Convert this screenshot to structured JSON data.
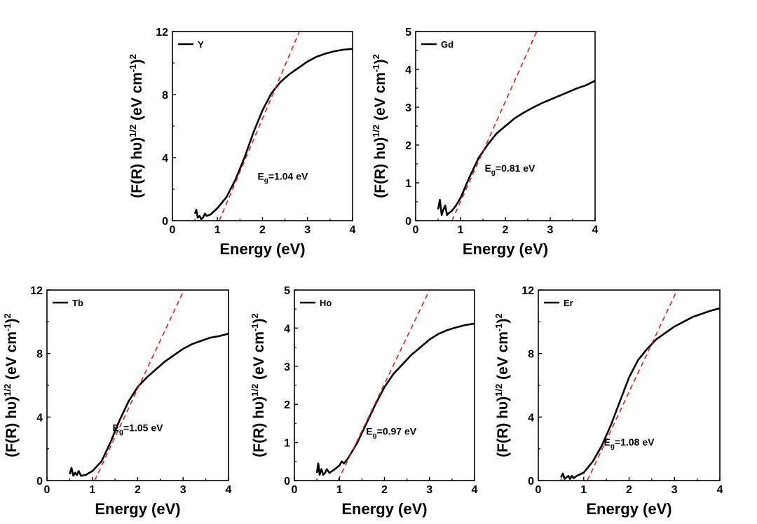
{
  "colors": {
    "data_line": "#000000",
    "fit_line": "#e41a1c",
    "axis": "#000000",
    "background": "#ffffff"
  },
  "chart_data": [
    {
      "type": "line",
      "xlabel": "Energy (eV)",
      "ylabel": "(F(R) hυ)1/2 (eV cm-1)2",
      "ylabel_parts": {
        "pre": "(F(R) hυ)",
        "sup1": "1/2",
        "mid": " (eV cm",
        "sup2": "-1",
        "post": ")",
        "sup3": "2"
      },
      "xlim": [
        0,
        4
      ],
      "ylim": [
        0,
        12
      ],
      "xticks": [
        0,
        1,
        2,
        3,
        4
      ],
      "yticks": [
        0,
        4,
        8,
        12
      ],
      "legend": "Y",
      "legend_position": "top-left",
      "annotation": {
        "main": "E",
        "sub": "g",
        "rest": "=1.04 eV"
      },
      "annotation_at": [
        2.45,
        2.6
      ],
      "series": [
        {
          "name": "Y",
          "style": "solid",
          "x": [
            0.5,
            0.53,
            0.56,
            0.6,
            0.64,
            0.68,
            0.72,
            0.76,
            0.85,
            1.0,
            1.2,
            1.4,
            1.6,
            1.8,
            2.0,
            2.2,
            2.4,
            2.6,
            2.8,
            3.0,
            3.2,
            3.4,
            3.6,
            3.8,
            4.0
          ],
          "y": [
            0.45,
            0.7,
            0.2,
            0.3,
            0.1,
            0.2,
            0.45,
            0.3,
            0.4,
            0.8,
            1.5,
            2.6,
            4.0,
            5.6,
            7.0,
            8.1,
            8.8,
            9.3,
            9.7,
            10.1,
            10.4,
            10.6,
            10.75,
            10.85,
            10.9
          ]
        },
        {
          "name": "fit",
          "style": "dashed",
          "x": [
            1.04,
            2.82
          ],
          "y": [
            0,
            12
          ]
        }
      ]
    },
    {
      "type": "line",
      "xlabel": "Energy (eV)",
      "ylabel": "(F(R) hυ)1/2 (eV cm-1)2",
      "ylabel_parts": {
        "pre": "(F(R) hυ)",
        "sup1": "1/2",
        "mid": " (eV cm",
        "sup2": "-1",
        "post": ")",
        "sup3": "2"
      },
      "xlim": [
        0,
        4
      ],
      "ylim": [
        0,
        5
      ],
      "xticks": [
        0,
        1,
        2,
        3,
        4
      ],
      "yticks": [
        0,
        1,
        2,
        3,
        4,
        5
      ],
      "legend": "Gd",
      "legend_position": "top-left",
      "annotation": {
        "main": "E",
        "sub": "g",
        "rest": "=0.81 eV"
      },
      "annotation_at": [
        2.1,
        1.3
      ],
      "series": [
        {
          "name": "Gd",
          "style": "solid",
          "x": [
            0.5,
            0.54,
            0.58,
            0.62,
            0.66,
            0.7,
            0.74,
            0.8,
            0.9,
            1.0,
            1.2,
            1.4,
            1.6,
            1.8,
            2.0,
            2.2,
            2.4,
            2.6,
            2.8,
            3.0,
            3.2,
            3.4,
            3.6,
            3.8,
            4.0
          ],
          "y": [
            0.3,
            0.55,
            0.15,
            0.3,
            0.4,
            0.15,
            0.2,
            0.25,
            0.4,
            0.6,
            1.15,
            1.65,
            2.0,
            2.3,
            2.5,
            2.7,
            2.85,
            2.98,
            3.1,
            3.2,
            3.3,
            3.4,
            3.5,
            3.58,
            3.7
          ]
        },
        {
          "name": "fit",
          "style": "dashed",
          "x": [
            0.81,
            2.7
          ],
          "y": [
            0,
            5
          ]
        }
      ]
    },
    {
      "type": "line",
      "xlabel": "Energy (eV)",
      "ylabel": "(F(R) hυ)1/2 (eV cm-1)2",
      "ylabel_parts": {
        "pre": "(F(R) hυ)",
        "sup1": "1/2",
        "mid": " (eV cm",
        "sup2": "-1",
        "post": ")",
        "sup3": "2"
      },
      "xlim": [
        0,
        4
      ],
      "ylim": [
        0,
        12
      ],
      "xticks": [
        0,
        1,
        2,
        3,
        4
      ],
      "yticks": [
        0,
        4,
        8,
        12
      ],
      "legend": "Tb",
      "legend_position": "top-left",
      "annotation": {
        "main": "E",
        "sub": "g",
        "rest": "=1.05 eV"
      },
      "annotation_at": [
        2.0,
        3.1
      ],
      "series": [
        {
          "name": "Tb",
          "style": "solid",
          "x": [
            0.5,
            0.54,
            0.58,
            0.62,
            0.66,
            0.7,
            0.75,
            0.85,
            1.0,
            1.2,
            1.4,
            1.6,
            1.8,
            2.0,
            2.2,
            2.4,
            2.6,
            2.8,
            3.0,
            3.2,
            3.4,
            3.6,
            3.8,
            4.0
          ],
          "y": [
            0.4,
            0.8,
            0.3,
            0.5,
            0.35,
            0.6,
            0.3,
            0.35,
            0.6,
            1.2,
            2.4,
            3.8,
            5.0,
            5.9,
            6.5,
            7.0,
            7.5,
            7.9,
            8.3,
            8.6,
            8.8,
            9.0,
            9.1,
            9.25
          ]
        },
        {
          "name": "fit",
          "style": "dashed",
          "x": [
            1.05,
            3.02
          ],
          "y": [
            0,
            12
          ]
        }
      ]
    },
    {
      "type": "line",
      "xlabel": "Energy (eV)",
      "ylabel": "(F(R) hυ)1/2 (eV cm-1)2",
      "ylabel_parts": {
        "pre": "(F(R) hυ)",
        "sup1": "1/2",
        "mid": " (eV cm",
        "sup2": "-1",
        "post": ")",
        "sup3": "2"
      },
      "xlim": [
        0,
        4
      ],
      "ylim": [
        0,
        5
      ],
      "xticks": [
        0,
        1,
        2,
        3,
        4
      ],
      "yticks": [
        0,
        1,
        2,
        3,
        4,
        5
      ],
      "legend": "Ho",
      "legend_position": "top-left",
      "annotation": {
        "main": "E",
        "sub": "g",
        "rest": "=0.97 eV"
      },
      "annotation_at": [
        2.15,
        1.2
      ],
      "series": [
        {
          "name": "Ho",
          "style": "solid",
          "x": [
            0.5,
            0.53,
            0.56,
            0.6,
            0.64,
            0.68,
            0.72,
            0.78,
            0.9,
            1.0,
            1.05,
            1.1,
            1.2,
            1.4,
            1.6,
            1.8,
            2.0,
            2.2,
            2.4,
            2.6,
            2.8,
            3.0,
            3.2,
            3.4,
            3.6,
            3.8,
            4.0
          ],
          "y": [
            0.2,
            0.45,
            0.15,
            0.3,
            0.15,
            0.2,
            0.3,
            0.2,
            0.3,
            0.4,
            0.5,
            0.45,
            0.6,
            1.0,
            1.5,
            2.0,
            2.45,
            2.8,
            3.05,
            3.3,
            3.5,
            3.7,
            3.85,
            3.95,
            4.02,
            4.08,
            4.12
          ]
        },
        {
          "name": "fit",
          "style": "dashed",
          "x": [
            0.97,
            3.0
          ],
          "y": [
            0,
            5
          ]
        }
      ]
    },
    {
      "type": "line",
      "xlabel": "Energy (eV)",
      "ylabel": "(F(R) hυ)1/2 (eV cm-1)2",
      "ylabel_parts": {
        "pre": "(F(R) hυ)",
        "sup1": "1/2",
        "mid": " (eV cm",
        "sup2": "-1",
        "post": ")",
        "sup3": "2"
      },
      "xlim": [
        0,
        4
      ],
      "ylim": [
        0,
        12
      ],
      "xticks": [
        0,
        1,
        2,
        3,
        4
      ],
      "yticks": [
        0,
        4,
        8,
        12
      ],
      "legend": "Er",
      "legend_position": "top-left",
      "annotation": {
        "main": "E",
        "sub": "g",
        "rest": "=1.08 eV"
      },
      "annotation_at": [
        2.0,
        2.2
      ],
      "series": [
        {
          "name": "Er",
          "style": "solid",
          "x": [
            0.5,
            0.54,
            0.58,
            0.62,
            0.66,
            0.7,
            0.74,
            0.78,
            0.85,
            1.0,
            1.2,
            1.4,
            1.6,
            1.8,
            2.0,
            2.2,
            2.4,
            2.6,
            2.8,
            3.0,
            3.2,
            3.4,
            3.6,
            3.8,
            4.0
          ],
          "y": [
            0.2,
            0.45,
            0.1,
            0.2,
            0.3,
            0.1,
            0.3,
            0.15,
            0.3,
            0.5,
            1.2,
            2.2,
            3.5,
            5.0,
            6.5,
            7.6,
            8.3,
            8.9,
            9.3,
            9.7,
            10.0,
            10.3,
            10.5,
            10.7,
            10.85
          ]
        },
        {
          "name": "fit",
          "style": "dashed",
          "x": [
            1.08,
            3.06
          ],
          "y": [
            0,
            12
          ]
        }
      ]
    }
  ]
}
